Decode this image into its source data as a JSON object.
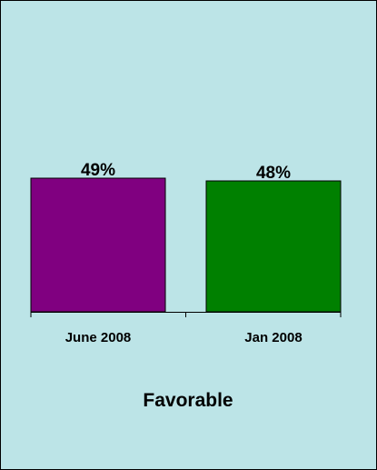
{
  "chart_data": {
    "type": "bar",
    "categories": [
      "June 2008",
      "Jan 2008"
    ],
    "values": [
      49,
      48
    ],
    "data_labels": [
      "49%",
      "48%"
    ],
    "colors": [
      "#800080",
      "#008000"
    ],
    "background": "#bce4e7",
    "title": "Favorable",
    "ylim": [
      0,
      100
    ],
    "grid": false,
    "legend": "none"
  }
}
